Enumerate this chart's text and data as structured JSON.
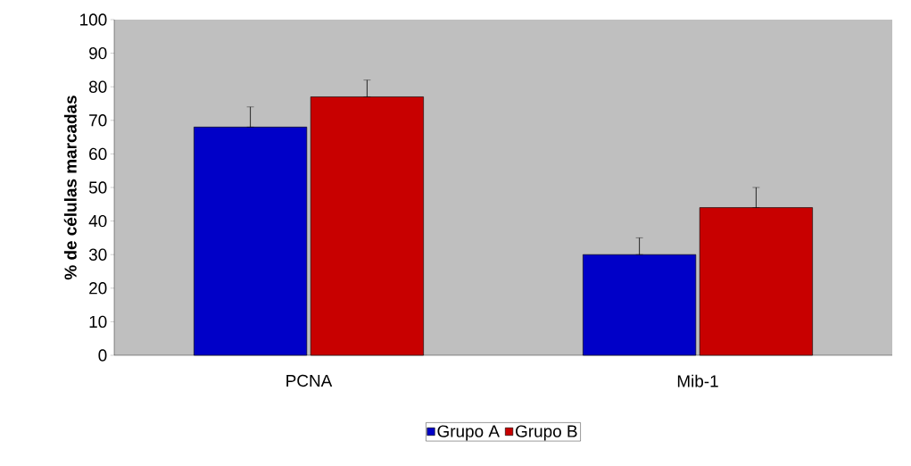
{
  "chart_data": {
    "type": "bar",
    "ylabel": "**% de células marcadas**",
    "categories": [
      "PCNA",
      "Mib-1"
    ],
    "series": [
      {
        "name": "Grupo A",
        "color": "#0000c8",
        "values": [
          68,
          30
        ],
        "errors": [
          [
            68,
            74
          ],
          [
            30,
            35
          ]
        ]
      },
      {
        "name": "Grupo B",
        "color": "#c80000",
        "values": [
          77,
          44
        ],
        "errors": [
          [
            77,
            82
          ],
          [
            44,
            50
          ]
        ]
      }
    ],
    "ylim": [
      0,
      100
    ],
    "yticks": [
      0,
      10,
      20,
      30,
      40,
      50,
      60,
      70,
      80,
      90,
      100
    ],
    "grid": false,
    "legend": "bottom"
  }
}
